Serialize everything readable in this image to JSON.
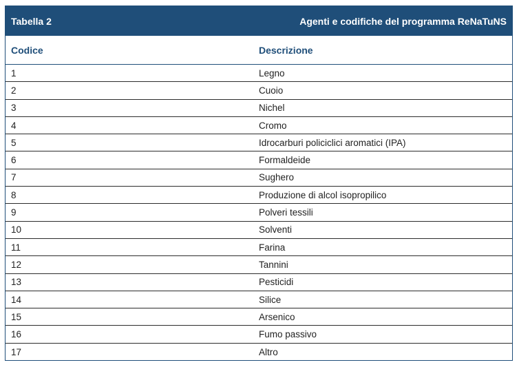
{
  "header": {
    "table_label": "Tabella 2",
    "table_title": "Agenti e codifiche del programma ReNaTuNS"
  },
  "columns": {
    "code": "Codice",
    "description": "Descrizione"
  },
  "rows": [
    {
      "code": "1",
      "description": "Legno"
    },
    {
      "code": "2",
      "description": "Cuoio"
    },
    {
      "code": "3",
      "description": "Nichel"
    },
    {
      "code": "4",
      "description": "Cromo"
    },
    {
      "code": "5",
      "description": "Idrocarburi policiclici aromatici (IPA)"
    },
    {
      "code": "6",
      "description": "Formaldeide"
    },
    {
      "code": "7",
      "description": "Sughero"
    },
    {
      "code": "8",
      "description": "Produzione di alcol isopropilico"
    },
    {
      "code": "9",
      "description": "Polveri tessili"
    },
    {
      "code": "10",
      "description": "Solventi"
    },
    {
      "code": "11",
      "description": "Farina"
    },
    {
      "code": "12",
      "description": "Tannini"
    },
    {
      "code": "13",
      "description": "Pesticidi"
    },
    {
      "code": "14",
      "description": "Silice"
    },
    {
      "code": "15",
      "description": "Arsenico"
    },
    {
      "code": "16",
      "description": "Fumo passivo"
    },
    {
      "code": "17",
      "description": "Altro"
    }
  ]
}
